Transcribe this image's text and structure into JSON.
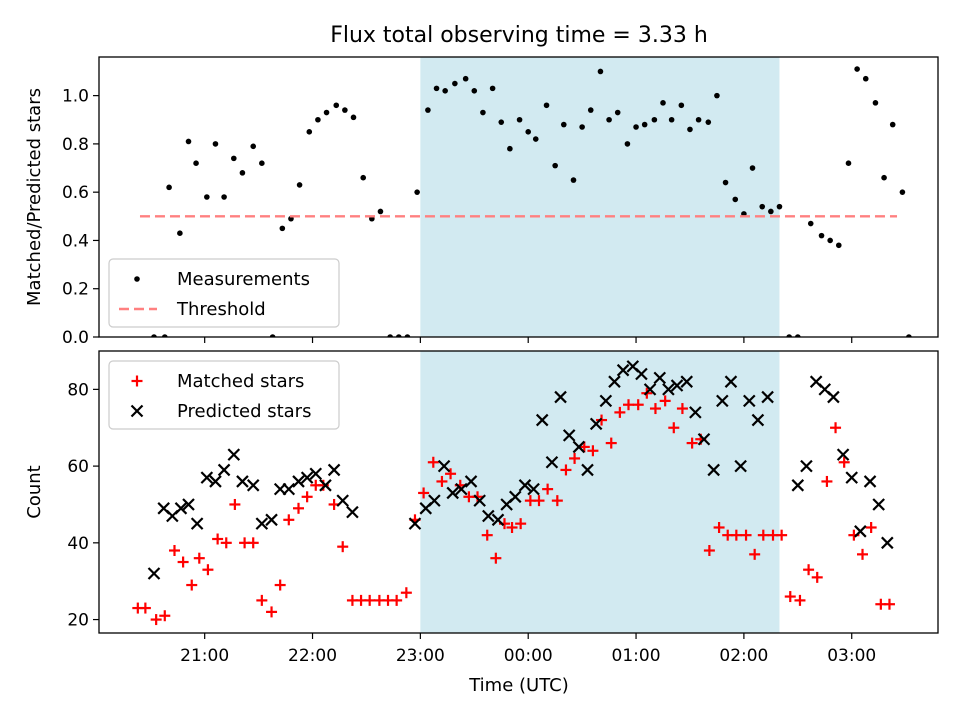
{
  "figure": {
    "title": "Flux total observing time = 3.33 h",
    "xlabel": "Time (UTC)",
    "xticks": [
      "21:00",
      "22:00",
      "23:00",
      "00:00",
      "01:00",
      "02:00",
      "03:00"
    ],
    "xtick_hours": [
      21,
      22,
      23,
      24,
      25,
      26,
      27
    ],
    "xlim": [
      20.02,
      27.8
    ],
    "highlight": {
      "start": 23.0,
      "end": 26.33,
      "color": "#add8e6"
    }
  },
  "chart_data": [
    {
      "type": "scatter",
      "panel": "top",
      "ylabel": "Matched/Predicted stars",
      "ylim": [
        0,
        1.16
      ],
      "yticks": [
        "0.0",
        "0.2",
        "0.4",
        "0.6",
        "0.8",
        "1.0"
      ],
      "ytick_values": [
        0.0,
        0.2,
        0.4,
        0.6,
        0.8,
        1.0
      ],
      "legend_position": "lower-left",
      "series": [
        {
          "name": "Measurements",
          "color": "#000000",
          "marker": "dot",
          "points": [
            [
              20.53,
              0
            ],
            [
              20.63,
              0
            ],
            [
              20.67,
              0.62
            ],
            [
              20.77,
              0.43
            ],
            [
              20.85,
              0.81
            ],
            [
              20.92,
              0.72
            ],
            [
              21.02,
              0.58
            ],
            [
              21.1,
              0.8
            ],
            [
              21.18,
              0.58
            ],
            [
              21.27,
              0.74
            ],
            [
              21.35,
              0.68
            ],
            [
              21.45,
              0.79
            ],
            [
              21.53,
              0.72
            ],
            [
              21.63,
              0
            ],
            [
              21.72,
              0.45
            ],
            [
              21.8,
              0.49
            ],
            [
              21.88,
              0.63
            ],
            [
              21.97,
              0.85
            ],
            [
              22.05,
              0.9
            ],
            [
              22.13,
              0.93
            ],
            [
              22.22,
              0.96
            ],
            [
              22.3,
              0.94
            ],
            [
              22.38,
              0.91
            ],
            [
              22.47,
              0.66
            ],
            [
              22.55,
              0.49
            ],
            [
              22.63,
              0.52
            ],
            [
              22.72,
              0
            ],
            [
              22.8,
              0
            ],
            [
              22.88,
              0
            ],
            [
              22.97,
              0.6
            ],
            [
              23.07,
              0.94
            ],
            [
              23.15,
              1.03
            ],
            [
              23.23,
              1.02
            ],
            [
              23.32,
              1.05
            ],
            [
              23.42,
              1.07
            ],
            [
              23.5,
              1.02
            ],
            [
              23.58,
              0.93
            ],
            [
              23.67,
              1.03
            ],
            [
              23.75,
              0.89
            ],
            [
              23.83,
              0.78
            ],
            [
              23.92,
              0.9
            ],
            [
              24.0,
              0.85
            ],
            [
              24.07,
              0.82
            ],
            [
              24.17,
              0.96
            ],
            [
              24.25,
              0.71
            ],
            [
              24.33,
              0.88
            ],
            [
              24.42,
              0.65
            ],
            [
              24.5,
              0.87
            ],
            [
              24.58,
              0.94
            ],
            [
              24.67,
              1.1
            ],
            [
              24.75,
              0.9
            ],
            [
              24.83,
              0.93
            ],
            [
              24.92,
              0.8
            ],
            [
              25.0,
              0.87
            ],
            [
              25.08,
              0.88
            ],
            [
              25.17,
              0.9
            ],
            [
              25.25,
              0.97
            ],
            [
              25.33,
              0.9
            ],
            [
              25.42,
              0.96
            ],
            [
              25.5,
              0.86
            ],
            [
              25.58,
              0.9
            ],
            [
              25.67,
              0.89
            ],
            [
              25.75,
              1.0
            ],
            [
              25.83,
              0.64
            ],
            [
              25.92,
              0.57
            ],
            [
              26.0,
              0.51
            ],
            [
              26.08,
              0.7
            ],
            [
              26.17,
              0.54
            ],
            [
              26.25,
              0.52
            ],
            [
              26.33,
              0.54
            ],
            [
              26.42,
              0
            ],
            [
              26.5,
              0
            ],
            [
              26.62,
              0.47
            ],
            [
              26.72,
              0.42
            ],
            [
              26.8,
              0.4
            ],
            [
              26.88,
              0.38
            ],
            [
              26.97,
              0.72
            ],
            [
              27.05,
              1.11
            ],
            [
              27.13,
              1.07
            ],
            [
              27.22,
              0.97
            ],
            [
              27.3,
              0.66
            ],
            [
              27.38,
              0.88
            ],
            [
              27.47,
              0.6
            ],
            [
              27.53,
              0
            ]
          ]
        },
        {
          "name": "Threshold",
          "color": "#ff8080",
          "style": "dashed",
          "points": [
            [
              20.4,
              0.5
            ],
            [
              27.42,
              0.5
            ]
          ]
        }
      ]
    },
    {
      "type": "scatter",
      "panel": "bottom",
      "ylabel": "Count",
      "ylim": [
        16.5,
        90
      ],
      "yticks": [
        "20",
        "40",
        "60",
        "80"
      ],
      "ytick_values": [
        20,
        40,
        60,
        80
      ],
      "legend_position": "top-left",
      "series": [
        {
          "name": "Matched stars",
          "color": "#ff0000",
          "marker": "plus",
          "points": [
            [
              20.38,
              23
            ],
            [
              20.45,
              23
            ],
            [
              20.55,
              20
            ],
            [
              20.63,
              21
            ],
            [
              20.72,
              38
            ],
            [
              20.8,
              35
            ],
            [
              20.88,
              29
            ],
            [
              20.95,
              36
            ],
            [
              21.03,
              33
            ],
            [
              21.12,
              41
            ],
            [
              21.2,
              40
            ],
            [
              21.28,
              50
            ],
            [
              21.37,
              40
            ],
            [
              21.45,
              40
            ],
            [
              21.53,
              25
            ],
            [
              21.62,
              22
            ],
            [
              21.7,
              29
            ],
            [
              21.78,
              46
            ],
            [
              21.87,
              49
            ],
            [
              21.95,
              52
            ],
            [
              22.03,
              55
            ],
            [
              22.1,
              55
            ],
            [
              22.2,
              50
            ],
            [
              22.28,
              39
            ],
            [
              22.37,
              25
            ],
            [
              22.45,
              25
            ],
            [
              22.53,
              25
            ],
            [
              22.62,
              25
            ],
            [
              22.7,
              25
            ],
            [
              22.78,
              25
            ],
            [
              22.87,
              27
            ],
            [
              22.95,
              46
            ],
            [
              23.03,
              53
            ],
            [
              23.12,
              61
            ],
            [
              23.2,
              56
            ],
            [
              23.28,
              58
            ],
            [
              23.37,
              55
            ],
            [
              23.45,
              52
            ],
            [
              23.53,
              52
            ],
            [
              23.62,
              42
            ],
            [
              23.7,
              36
            ],
            [
              23.78,
              45
            ],
            [
              23.85,
              44
            ],
            [
              23.93,
              45
            ],
            [
              24.02,
              51
            ],
            [
              24.1,
              51
            ],
            [
              24.18,
              54
            ],
            [
              24.27,
              51
            ],
            [
              24.35,
              59
            ],
            [
              24.43,
              62
            ],
            [
              24.52,
              65
            ],
            [
              24.6,
              64
            ],
            [
              24.68,
              72
            ],
            [
              24.77,
              66
            ],
            [
              24.85,
              74
            ],
            [
              24.93,
              76
            ],
            [
              25.02,
              76
            ],
            [
              25.1,
              79
            ],
            [
              25.18,
              75
            ],
            [
              25.27,
              77
            ],
            [
              25.35,
              70
            ],
            [
              25.43,
              75
            ],
            [
              25.52,
              66
            ],
            [
              25.6,
              67
            ],
            [
              25.68,
              38
            ],
            [
              25.77,
              44
            ],
            [
              25.85,
              42
            ],
            [
              25.93,
              42
            ],
            [
              26.02,
              42
            ],
            [
              26.1,
              37
            ],
            [
              26.18,
              42
            ],
            [
              26.27,
              42
            ],
            [
              26.35,
              42
            ],
            [
              26.43,
              26
            ],
            [
              26.52,
              25
            ],
            [
              26.6,
              33
            ],
            [
              26.68,
              31
            ],
            [
              26.77,
              56
            ],
            [
              26.85,
              70
            ],
            [
              26.93,
              61
            ],
            [
              27.02,
              42
            ],
            [
              27.1,
              37
            ],
            [
              27.18,
              44
            ],
            [
              27.27,
              24
            ],
            [
              27.35,
              24
            ]
          ]
        },
        {
          "name": "Predicted stars",
          "color": "#000000",
          "marker": "x",
          "points": [
            [
              20.53,
              32
            ],
            [
              20.62,
              49
            ],
            [
              20.7,
              47
            ],
            [
              20.78,
              49
            ],
            [
              20.85,
              50
            ],
            [
              20.93,
              45
            ],
            [
              21.02,
              57
            ],
            [
              21.1,
              56
            ],
            [
              21.18,
              59
            ],
            [
              21.27,
              63
            ],
            [
              21.35,
              56
            ],
            [
              21.45,
              55
            ],
            [
              21.53,
              45
            ],
            [
              21.62,
              46
            ],
            [
              21.7,
              54
            ],
            [
              21.78,
              54
            ],
            [
              21.87,
              56
            ],
            [
              21.95,
              57
            ],
            [
              22.03,
              58
            ],
            [
              22.12,
              55
            ],
            [
              22.2,
              59
            ],
            [
              22.28,
              51
            ],
            [
              22.37,
              48
            ],
            [
              22.95,
              45
            ],
            [
              23.05,
              49
            ],
            [
              23.13,
              51
            ],
            [
              23.22,
              60
            ],
            [
              23.3,
              53
            ],
            [
              23.38,
              54
            ],
            [
              23.47,
              56
            ],
            [
              23.55,
              51
            ],
            [
              23.63,
              47
            ],
            [
              23.72,
              46
            ],
            [
              23.8,
              50
            ],
            [
              23.88,
              52
            ],
            [
              23.97,
              55
            ],
            [
              24.05,
              54
            ],
            [
              24.13,
              72
            ],
            [
              24.22,
              61
            ],
            [
              24.3,
              78
            ],
            [
              24.38,
              68
            ],
            [
              24.47,
              65
            ],
            [
              24.55,
              59
            ],
            [
              24.63,
              71
            ],
            [
              24.72,
              77
            ],
            [
              24.8,
              82
            ],
            [
              24.88,
              85
            ],
            [
              24.97,
              86
            ],
            [
              25.05,
              84
            ],
            [
              25.13,
              80
            ],
            [
              25.22,
              83
            ],
            [
              25.3,
              80
            ],
            [
              25.38,
              81
            ],
            [
              25.47,
              82
            ],
            [
              25.55,
              74
            ],
            [
              25.63,
              67
            ],
            [
              25.72,
              59
            ],
            [
              25.8,
              77
            ],
            [
              25.88,
              82
            ],
            [
              25.97,
              60
            ],
            [
              26.05,
              77
            ],
            [
              26.13,
              72
            ],
            [
              26.22,
              78
            ],
            [
              26.5,
              55
            ],
            [
              26.58,
              60
            ],
            [
              26.67,
              82
            ],
            [
              26.75,
              80
            ],
            [
              26.83,
              78
            ],
            [
              26.92,
              63
            ],
            [
              27.0,
              57
            ],
            [
              27.08,
              43
            ],
            [
              27.17,
              56
            ],
            [
              27.25,
              50
            ],
            [
              27.33,
              40
            ]
          ]
        }
      ]
    }
  ]
}
